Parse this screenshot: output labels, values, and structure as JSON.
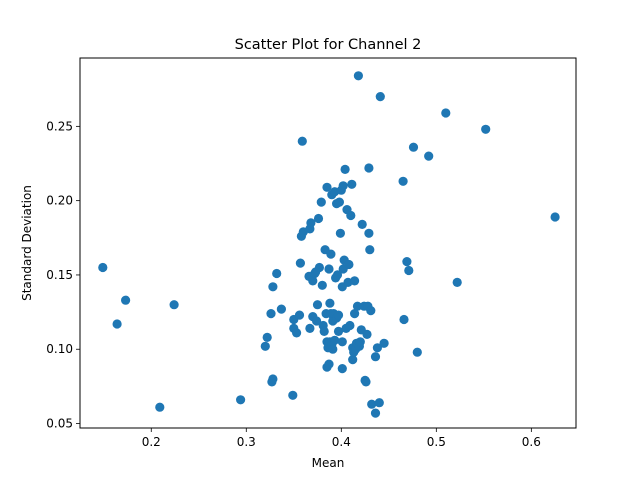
{
  "chart_data": {
    "type": "scatter",
    "title": "Scatter Plot for Channel 2",
    "xlabel": "Mean",
    "ylabel": "Standard Deviation",
    "xlim": [
      0.125,
      0.647
    ],
    "ylim": [
      0.047,
      0.296
    ],
    "xticks": [
      0.2,
      0.3,
      0.4,
      0.5,
      0.6
    ],
    "xtick_labels": [
      "0.2",
      "0.3",
      "0.4",
      "0.5",
      "0.6"
    ],
    "yticks": [
      0.05,
      0.1,
      0.15,
      0.2,
      0.25
    ],
    "ytick_labels": [
      "0.05",
      "0.10",
      "0.15",
      "0.20",
      "0.25"
    ],
    "grid": false,
    "marker_color": "#1f77b4",
    "points": [
      [
        0.149,
        0.155
      ],
      [
        0.164,
        0.117
      ],
      [
        0.173,
        0.133
      ],
      [
        0.209,
        0.061
      ],
      [
        0.224,
        0.13
      ],
      [
        0.294,
        0.066
      ],
      [
        0.32,
        0.102
      ],
      [
        0.322,
        0.108
      ],
      [
        0.326,
        0.124
      ],
      [
        0.327,
        0.078
      ],
      [
        0.328,
        0.08
      ],
      [
        0.328,
        0.142
      ],
      [
        0.332,
        0.151
      ],
      [
        0.337,
        0.127
      ],
      [
        0.349,
        0.069
      ],
      [
        0.35,
        0.12
      ],
      [
        0.35,
        0.114
      ],
      [
        0.353,
        0.111
      ],
      [
        0.356,
        0.123
      ],
      [
        0.357,
        0.158
      ],
      [
        0.358,
        0.176
      ],
      [
        0.359,
        0.24
      ],
      [
        0.36,
        0.179
      ],
      [
        0.366,
        0.149
      ],
      [
        0.367,
        0.114
      ],
      [
        0.367,
        0.181
      ],
      [
        0.368,
        0.185
      ],
      [
        0.37,
        0.122
      ],
      [
        0.37,
        0.146
      ],
      [
        0.372,
        0.151
      ],
      [
        0.373,
        0.152
      ],
      [
        0.374,
        0.119
      ],
      [
        0.375,
        0.13
      ],
      [
        0.376,
        0.188
      ],
      [
        0.377,
        0.155
      ],
      [
        0.379,
        0.199
      ],
      [
        0.38,
        0.143
      ],
      [
        0.381,
        0.116
      ],
      [
        0.382,
        0.112
      ],
      [
        0.383,
        0.167
      ],
      [
        0.384,
        0.124
      ],
      [
        0.385,
        0.088
      ],
      [
        0.385,
        0.105
      ],
      [
        0.385,
        0.209
      ],
      [
        0.386,
        0.101
      ],
      [
        0.387,
        0.09
      ],
      [
        0.387,
        0.154
      ],
      [
        0.388,
        0.131
      ],
      [
        0.388,
        0.105
      ],
      [
        0.389,
        0.124
      ],
      [
        0.389,
        0.164
      ],
      [
        0.39,
        0.103
      ],
      [
        0.39,
        0.204
      ],
      [
        0.391,
        0.1
      ],
      [
        0.391,
        0.119
      ],
      [
        0.392,
        0.124
      ],
      [
        0.393,
        0.106
      ],
      [
        0.393,
        0.206
      ],
      [
        0.394,
        0.148
      ],
      [
        0.395,
        0.121
      ],
      [
        0.395,
        0.198
      ],
      [
        0.396,
        0.15
      ],
      [
        0.397,
        0.112
      ],
      [
        0.397,
        0.123
      ],
      [
        0.398,
        0.199
      ],
      [
        0.399,
        0.178
      ],
      [
        0.4,
        0.207
      ],
      [
        0.401,
        0.087
      ],
      [
        0.401,
        0.105
      ],
      [
        0.401,
        0.142
      ],
      [
        0.402,
        0.154
      ],
      [
        0.402,
        0.21
      ],
      [
        0.403,
        0.16
      ],
      [
        0.404,
        0.221
      ],
      [
        0.405,
        0.114
      ],
      [
        0.406,
        0.194
      ],
      [
        0.407,
        0.145
      ],
      [
        0.408,
        0.157
      ],
      [
        0.409,
        0.116
      ],
      [
        0.41,
        0.19
      ],
      [
        0.411,
        0.211
      ],
      [
        0.412,
        0.101
      ],
      [
        0.412,
        0.093
      ],
      [
        0.413,
        0.098
      ],
      [
        0.414,
        0.146
      ],
      [
        0.414,
        0.124
      ],
      [
        0.415,
        0.1
      ],
      [
        0.416,
        0.104
      ],
      [
        0.417,
        0.129
      ],
      [
        0.418,
        0.284
      ],
      [
        0.419,
        0.102
      ],
      [
        0.42,
        0.105
      ],
      [
        0.421,
        0.113
      ],
      [
        0.422,
        0.184
      ],
      [
        0.424,
        0.129
      ],
      [
        0.425,
        0.079
      ],
      [
        0.426,
        0.078
      ],
      [
        0.427,
        0.11
      ],
      [
        0.428,
        0.129
      ],
      [
        0.429,
        0.222
      ],
      [
        0.429,
        0.178
      ],
      [
        0.43,
        0.167
      ],
      [
        0.431,
        0.126
      ],
      [
        0.432,
        0.063
      ],
      [
        0.436,
        0.095
      ],
      [
        0.436,
        0.057
      ],
      [
        0.438,
        0.101
      ],
      [
        0.44,
        0.064
      ],
      [
        0.441,
        0.27
      ],
      [
        0.445,
        0.104
      ],
      [
        0.465,
        0.213
      ],
      [
        0.466,
        0.12
      ],
      [
        0.469,
        0.159
      ],
      [
        0.471,
        0.153
      ],
      [
        0.476,
        0.236
      ],
      [
        0.48,
        0.098
      ],
      [
        0.492,
        0.23
      ],
      [
        0.51,
        0.259
      ],
      [
        0.522,
        0.145
      ],
      [
        0.552,
        0.248
      ],
      [
        0.625,
        0.189
      ]
    ]
  }
}
